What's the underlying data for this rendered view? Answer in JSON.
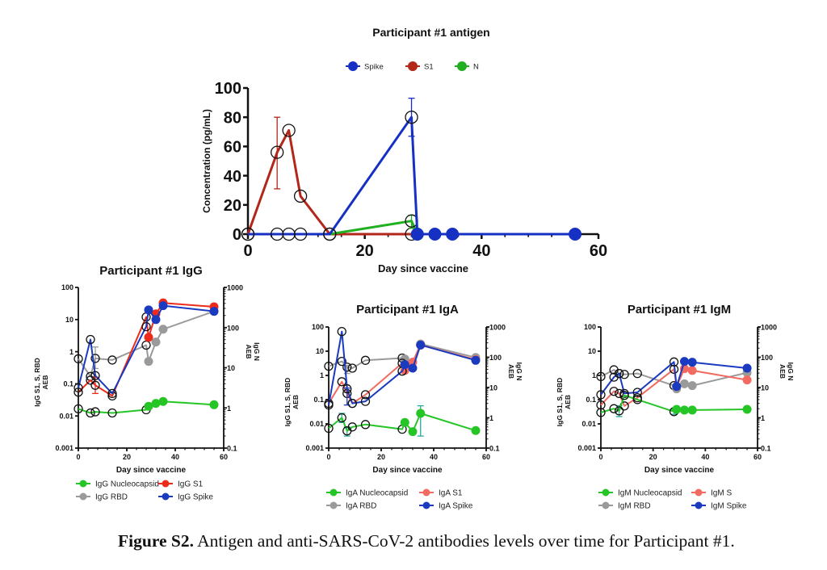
{
  "caption": {
    "label": "Figure S2.",
    "text": " Antigen and anti-SARS-CoV-2 antibodies levels over time for Participant #1."
  },
  "chart_data": [
    {
      "id": "antigen",
      "type": "line",
      "title": "Participant #1 antigen",
      "xlabel": "Day since vaccine",
      "ylabel": "Concentration (pg/mL)",
      "xlim": [
        0,
        60
      ],
      "ylim": [
        0,
        100
      ],
      "xticks": [
        0,
        20,
        40,
        60
      ],
      "yticks": [
        0,
        20,
        40,
        60,
        80,
        100
      ],
      "legend_position": "top-center",
      "legend": [
        {
          "name": "Spike",
          "color": "#1730c4"
        },
        {
          "name": "S1",
          "color": "#b3261a"
        },
        {
          "name": "N",
          "color": "#21b021"
        }
      ],
      "series": [
        {
          "name": "S1",
          "color": "#b3261a",
          "x": [
            0,
            5,
            7,
            9,
            14,
            28
          ],
          "y": [
            0,
            56,
            71,
            26,
            0,
            0
          ],
          "open": [
            true,
            true,
            true,
            true,
            true,
            true
          ],
          "err": [
            null,
            [
              31,
              80
            ],
            null,
            null,
            null,
            null
          ]
        },
        {
          "name": "N",
          "color": "#21b021",
          "x": [
            0,
            14,
            28,
            29
          ],
          "y": [
            0,
            0,
            9,
            0
          ],
          "open": [
            true,
            true,
            true,
            false
          ],
          "err": [
            null,
            null,
            [
              4,
              13
            ],
            null
          ]
        },
        {
          "name": "Spike",
          "color": "#1730c4",
          "x": [
            0,
            5,
            7,
            9,
            14,
            28,
            29,
            32,
            35,
            56
          ],
          "y": [
            0,
            0,
            0,
            0,
            0,
            80,
            0,
            0,
            0,
            0
          ],
          "open": [
            true,
            true,
            true,
            true,
            true,
            true,
            false,
            false,
            false,
            false
          ],
          "err": [
            null,
            null,
            null,
            null,
            null,
            [
              67,
              93
            ],
            null,
            null,
            null,
            null
          ]
        }
      ]
    },
    {
      "id": "igg",
      "type": "line",
      "title": "Participant #1 IgG",
      "xlabel": "Day since vaccine",
      "ylabel": "IgG  S1, S, RBD\nAEB",
      "ylabel_right": "IgG  N\nAEB",
      "yscale": "log",
      "xlim": [
        0,
        60
      ],
      "ylim": [
        0.001,
        100
      ],
      "ylim_right": [
        0.1,
        1000
      ],
      "xticks": [
        0,
        20,
        40,
        60
      ],
      "yticks": [
        "0.001",
        "0.01",
        "0.1",
        "1",
        "10",
        "100"
      ],
      "yticks_right": [
        "0.1",
        "1",
        "10",
        "100",
        "1000"
      ],
      "legend_position": "bottom",
      "legend": [
        {
          "name": "IgG Nucleocapsid",
          "color": "#26c526"
        },
        {
          "name": "IgG S1",
          "color": "#ee2b1b"
        },
        {
          "name": "IgG RBD",
          "color": "#9a9a9a"
        },
        {
          "name": "IgG Spike",
          "color": "#1a3ac0"
        }
      ],
      "series": [
        {
          "name": "IgG RBD",
          "color": "#9a9a9a",
          "axis": "left",
          "x": [
            0,
            5,
            7,
            14,
            28,
            29,
            32,
            35,
            56
          ],
          "y": [
            0.6,
            0.17,
            0.62,
            0.55,
            1.6,
            0.5,
            2.0,
            5.0,
            18
          ],
          "open": [
            true,
            true,
            true,
            true,
            true,
            false,
            false,
            false,
            false
          ],
          "err": [
            null,
            null,
            [
              0.3,
              1.4
            ],
            null,
            null,
            null,
            null,
            null,
            null
          ]
        },
        {
          "name": "IgG S1",
          "color": "#ee2b1b",
          "axis": "left",
          "x": [
            0,
            5,
            7,
            14,
            28,
            29,
            32,
            35,
            56
          ],
          "y": [
            0.055,
            0.13,
            0.09,
            0.042,
            12,
            2.8,
            15,
            33,
            25
          ],
          "open": [
            true,
            true,
            true,
            true,
            true,
            false,
            false,
            false,
            false
          ],
          "err": [
            null,
            null,
            [
              0.05,
              0.16
            ],
            null,
            null,
            null,
            null,
            null,
            null
          ]
        },
        {
          "name": "IgG Spike",
          "color": "#1a3ac0",
          "axis": "left",
          "x": [
            0,
            5,
            7,
            14,
            28,
            29,
            32,
            35,
            56
          ],
          "y": [
            0.075,
            2.4,
            0.18,
            0.05,
            6.0,
            20,
            10,
            27,
            18
          ],
          "open": [
            true,
            true,
            true,
            true,
            true,
            false,
            false,
            false,
            false
          ],
          "err": [
            null,
            null,
            null,
            null,
            null,
            null,
            null,
            null,
            null
          ]
        },
        {
          "name": "IgG Nucleocapsid",
          "color": "#26c526",
          "axis": "right",
          "x": [
            0,
            5,
            7,
            14,
            28,
            29,
            32,
            35,
            56
          ],
          "y": [
            0.95,
            0.75,
            0.8,
            0.75,
            0.9,
            1.1,
            1.3,
            1.45,
            1.2
          ],
          "open": [
            true,
            true,
            true,
            true,
            true,
            false,
            false,
            false,
            false
          ],
          "err": [
            null,
            null,
            null,
            null,
            null,
            null,
            null,
            null,
            null
          ]
        }
      ]
    },
    {
      "id": "iga",
      "type": "line",
      "title": "Participant #1 IgA",
      "xlabel": "Day since vaccine",
      "ylabel": "IgG  S1, S, RBD\nAEB",
      "ylabel_right": "IgG  N\nAEB",
      "yscale": "log",
      "xlim": [
        0,
        60
      ],
      "ylim": [
        0.001,
        100
      ],
      "ylim_right": [
        0.1,
        1000
      ],
      "xticks": [
        0,
        20,
        40,
        60
      ],
      "yticks": [
        "0.001",
        "0.01",
        "0.1",
        "1",
        "10",
        "100"
      ],
      "yticks_right": [
        "0.1",
        "1",
        "10",
        "100",
        "1000"
      ],
      "legend_position": "bottom",
      "legend": [
        {
          "name": "IgA Nucleocapsid",
          "color": "#26c526"
        },
        {
          "name": "IgA S1",
          "color": "#f26a60"
        },
        {
          "name": "IgA RBD",
          "color": "#9a9a9a"
        },
        {
          "name": "IgA Spike",
          "color": "#1a3ac0"
        }
      ],
      "series": [
        {
          "name": "IgA RBD",
          "color": "#9a9a9a",
          "axis": "left",
          "x": [
            0,
            5,
            7,
            9,
            14,
            28,
            29,
            32,
            35,
            56
          ],
          "y": [
            2.4,
            3.8,
            2.2,
            2.0,
            4.2,
            5.2,
            4.8,
            3.5,
            20,
            5.5
          ],
          "open": [
            true,
            true,
            true,
            true,
            true,
            true,
            false,
            false,
            false,
            false
          ],
          "err": [
            null,
            null,
            [
              1.2,
              2.6
            ],
            null,
            null,
            null,
            null,
            null,
            null,
            null
          ]
        },
        {
          "name": "IgA S1",
          "color": "#f26a60",
          "axis": "left",
          "x": [
            0,
            5,
            7,
            9,
            14,
            28,
            29,
            32,
            35,
            56
          ],
          "y": [
            0.07,
            0.55,
            0.18,
            0.07,
            0.16,
            3.2,
            1.6,
            3.5,
            18,
            4.5
          ],
          "open": [
            true,
            true,
            true,
            true,
            true,
            true,
            false,
            false,
            false,
            false
          ],
          "err": [
            null,
            null,
            null,
            null,
            null,
            null,
            null,
            null,
            null,
            null
          ]
        },
        {
          "name": "IgA Spike",
          "color": "#1a3ac0",
          "axis": "left",
          "x": [
            0,
            5,
            7,
            9,
            14,
            28,
            29,
            32,
            35,
            56
          ],
          "y": [
            0.06,
            65,
            0.28,
            0.07,
            0.085,
            1.5,
            2.8,
            2.0,
            18,
            4.2
          ],
          "open": [
            true,
            true,
            true,
            true,
            true,
            true,
            false,
            false,
            false,
            false
          ],
          "err": [
            null,
            null,
            [
              0.06,
              0.3
            ],
            null,
            null,
            null,
            null,
            null,
            null,
            null
          ]
        },
        {
          "name": "IgA Nucleocapsid",
          "color": "#26c526",
          "axis": "right",
          "x": [
            0,
            5,
            7,
            9,
            14,
            28,
            29,
            32,
            35,
            56
          ],
          "y": [
            0.45,
            1.0,
            0.37,
            0.5,
            0.6,
            0.42,
            0.7,
            0.35,
            1.4,
            0.38
          ],
          "open": [
            true,
            true,
            true,
            true,
            true,
            true,
            false,
            false,
            false,
            false
          ],
          "err": [
            null,
            [
              0.7,
              1.4
            ],
            [
              0.25,
              0.5
            ],
            null,
            null,
            null,
            null,
            [
              0.3,
              0.4
            ],
            [
              0.25,
              2.5
            ],
            null
          ]
        }
      ]
    },
    {
      "id": "igm",
      "type": "line",
      "title": "Participant #1 IgM",
      "xlabel": "Day since vaccine",
      "ylabel": "IgG  S1, S, RBD\nAEB",
      "ylabel_right": "IgG  N\nAEB",
      "yscale": "log",
      "xlim": [
        0,
        60
      ],
      "ylim": [
        0.001,
        100
      ],
      "ylim_right": [
        0.1,
        1000
      ],
      "xticks": [
        0,
        20,
        40,
        60
      ],
      "yticks": [
        "0.001",
        "0.01",
        "0.1",
        "1",
        "10",
        "100"
      ],
      "yticks_right": [
        "0.1",
        "1",
        "10",
        "100",
        "1000"
      ],
      "legend_position": "bottom",
      "legend": [
        {
          "name": "IgM Nucleocapsid",
          "color": "#26c526"
        },
        {
          "name": "IgM S",
          "color": "#f26a60"
        },
        {
          "name": "IgM RBD",
          "color": "#9a9a9a"
        },
        {
          "name": "IgM Spike",
          "color": "#1a3ac0"
        }
      ],
      "series": [
        {
          "name": "IgM RBD",
          "color": "#9a9a9a",
          "axis": "left",
          "x": [
            0,
            5,
            7,
            9,
            14,
            28,
            29,
            32,
            35,
            56
          ],
          "y": [
            0.9,
            1.7,
            1.2,
            1.1,
            1.2,
            0.38,
            0.28,
            0.45,
            0.38,
            1.3
          ],
          "open": [
            true,
            true,
            true,
            true,
            true,
            true,
            false,
            false,
            false,
            false
          ],
          "err": [
            null,
            null,
            null,
            null,
            null,
            null,
            null,
            null,
            null,
            null
          ]
        },
        {
          "name": "IgM S",
          "color": "#f26a60",
          "axis": "left",
          "x": [
            0,
            5,
            7,
            9,
            14,
            28,
            29,
            32,
            35,
            56
          ],
          "y": [
            0.06,
            0.22,
            0.18,
            0.055,
            0.12,
            1.8,
            0.35,
            1.9,
            1.6,
            0.65
          ],
          "open": [
            true,
            true,
            true,
            true,
            true,
            true,
            false,
            false,
            false,
            false
          ],
          "err": [
            null,
            null,
            null,
            null,
            null,
            null,
            null,
            null,
            null,
            null
          ]
        },
        {
          "name": "IgM Spike",
          "color": "#1a3ac0",
          "axis": "left",
          "x": [
            0,
            5,
            7,
            9,
            14,
            28,
            29,
            32,
            35,
            56
          ],
          "y": [
            0.16,
            0.85,
            1.2,
            0.18,
            0.2,
            3.6,
            0.35,
            3.8,
            3.5,
            2.0
          ],
          "open": [
            true,
            true,
            true,
            true,
            true,
            true,
            false,
            false,
            false,
            false
          ],
          "err": [
            null,
            null,
            null,
            null,
            null,
            null,
            null,
            null,
            null,
            null
          ]
        },
        {
          "name": "IgM Nucleocapsid",
          "color": "#26c526",
          "axis": "right",
          "x": [
            0,
            5,
            7,
            9,
            14,
            28,
            29,
            32,
            35,
            56
          ],
          "y": [
            1.5,
            2.0,
            1.7,
            5.5,
            4.0,
            1.6,
            1.9,
            1.8,
            1.8,
            1.9
          ],
          "open": [
            true,
            true,
            true,
            true,
            true,
            true,
            false,
            false,
            false,
            false
          ],
          "err": [
            null,
            null,
            [
              1.1,
              2.5
            ],
            null,
            null,
            [
              1.3,
              1.9
            ],
            null,
            null,
            null,
            null
          ]
        }
      ]
    }
  ]
}
